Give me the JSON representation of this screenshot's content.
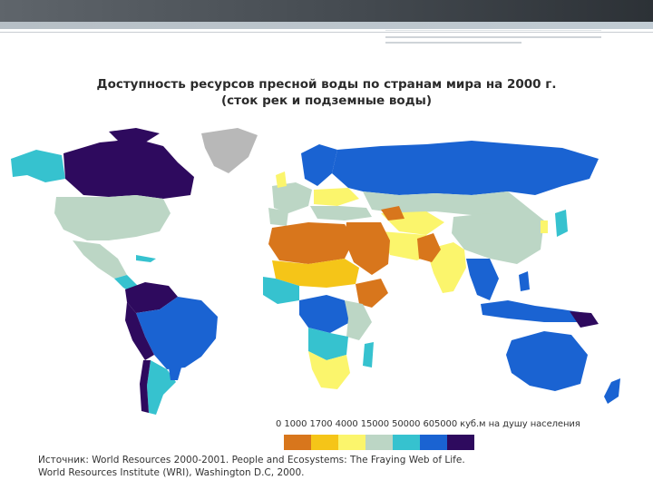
{
  "title": {
    "line1": "Доступность ресурсов пресной воды по странам мира на 2000 г.",
    "line2": "(сток рек и подземные воды)"
  },
  "legend": {
    "text": "0 1000 1700 4000 15000 50000 605000 куб.м на душу населения",
    "colors": [
      "#d8761c",
      "#f5c518",
      "#fbf56c",
      "#bcd6c5",
      "#36c2cf",
      "#1a63d2",
      "#2e0a5e"
    ]
  },
  "source": {
    "line1": "Источник: World Resources 2000-2001. People and Ecosystems: The Fraying Web of Life.",
    "line2": "World Resources Institute (WRI), Washington D.C, 2000."
  },
  "map": {
    "colors": {
      "ocean": "#ffffff",
      "greenland": "#b8b8b8",
      "lt_1000": "#d8761c",
      "1000_1700": "#f5c518",
      "1700_4000": "#fbf56c",
      "4000_15000": "#bcd6c5",
      "15000_50000": "#36c2cf",
      "50000_605000": "#1a63d2",
      "gt_605000": "#2e0a5e"
    }
  }
}
